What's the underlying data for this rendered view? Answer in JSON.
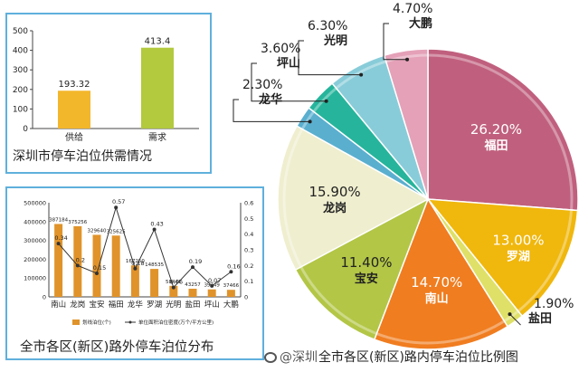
{
  "colors": {
    "panel_border": "#5fb0dc",
    "supply_bar": "#f3b72c",
    "demand_bar": "#b3c93e",
    "district_bar": "#e0932a",
    "ratio_line": "#333333",
    "pie": [
      "#c0607e",
      "#f0b70d",
      "#dfe067",
      "#f07d20",
      "#b3c646",
      "#efeecf",
      "#5aafcf",
      "#26b59c",
      "#89ccd9",
      "#e4a1b8"
    ]
  },
  "captions": {
    "supply_demand": "深圳市停车泊位供需情况",
    "district_offroad": "全市各区(新区)路外停车泊位分布",
    "district_onroad": "全市各区(新区)路内停车泊位比例图"
  },
  "watermark": "@深圳",
  "chart_data": [
    {
      "id": "supply-demand",
      "type": "bar",
      "title": "深圳市停车泊位供需情况",
      "categories": [
        "供给",
        "需求"
      ],
      "values": [
        193.32,
        413.4
      ],
      "value_labels": [
        "193.32",
        "413.4"
      ],
      "ylim": [
        0,
        500
      ],
      "yticks": [
        "0",
        "100",
        "200",
        "300",
        "400",
        "500"
      ],
      "grid": false
    },
    {
      "id": "district-offroad",
      "type": "bar",
      "title": "全市各区(新区)路外停车泊位分布",
      "categories": [
        "南山",
        "龙岗",
        "宝安",
        "福田",
        "龙华",
        "罗湖",
        "光明",
        "盐田",
        "坪山",
        "大鹏"
      ],
      "series": [
        {
          "name": "划线泊位(个)",
          "type": "bar",
          "axis": "left",
          "values": [
            387184,
            375256,
            329640,
            325625,
            167250,
            148535,
            58441,
            43257,
            39749,
            37466
          ],
          "value_labels": [
            "387184",
            "375256",
            "329640",
            "325625",
            "167250",
            "148535",
            "58441",
            "43257",
            "39749",
            "37466"
          ]
        },
        {
          "name": "单位面积泊位密度(万个/平方公里)",
          "type": "line",
          "axis": "right",
          "values": [
            0.34,
            0.2,
            0.15,
            0.57,
            0.18,
            0.43,
            0.06,
            0.19,
            0.07,
            0.16
          ],
          "value_labels": [
            "0.34",
            "0.2",
            "0.15",
            "0.57",
            "0.18",
            "0.43",
            "0.06",
            "0.19",
            "0.07",
            "0.16"
          ]
        }
      ],
      "ylim_left": [
        0,
        500000
      ],
      "yticks_left": [
        "0",
        "100000",
        "200000",
        "300000",
        "400000",
        "500000"
      ],
      "ylim_right": [
        0,
        0.6
      ],
      "yticks_right": [
        "0",
        "0.1",
        "0.2",
        "0.3",
        "0.4",
        "0.5",
        "0.6"
      ],
      "legend": "bottom",
      "grid": false
    },
    {
      "id": "district-onroad",
      "type": "pie",
      "title": "全市各区(新区)路内停车泊位比例图",
      "slices": [
        {
          "label": "福田",
          "value": 26.2,
          "text": "26.20%"
        },
        {
          "label": "罗湖",
          "value": 13.0,
          "text": "13.00%"
        },
        {
          "label": "盐田",
          "value": 1.9,
          "text": "1.90%"
        },
        {
          "label": "南山",
          "value": 14.7,
          "text": "14.70%"
        },
        {
          "label": "宝安",
          "value": 11.4,
          "text": "11.40%"
        },
        {
          "label": "龙岗",
          "value": 15.9,
          "text": "15.90%"
        },
        {
          "label": "龙华",
          "value": 2.3,
          "text": "2.30%"
        },
        {
          "label": "坪山",
          "value": 3.6,
          "text": "3.60%"
        },
        {
          "label": "光明",
          "value": 6.3,
          "text": "6.30%"
        },
        {
          "label": "大鹏",
          "value": 4.7,
          "text": "4.70%"
        }
      ]
    }
  ]
}
